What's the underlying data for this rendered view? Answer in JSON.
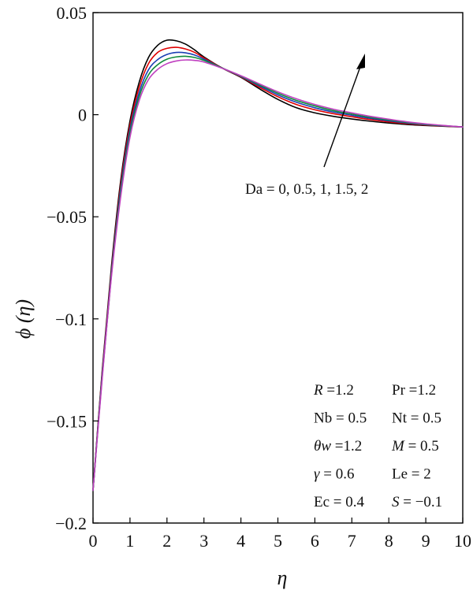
{
  "chart_data": {
    "type": "line",
    "title": "",
    "xlabel": "η",
    "ylabel": "ϕ (η)",
    "xlim": [
      0,
      10
    ],
    "ylim": [
      -0.2,
      0.05
    ],
    "xticks": [
      "0",
      "1",
      "2",
      "3",
      "4",
      "5",
      "6",
      "7",
      "8",
      "9",
      "10"
    ],
    "yticks": [
      "0.05",
      "0",
      "-0.05",
      "-0.1",
      "-0.15",
      "-0.2"
    ],
    "grid": false,
    "series": [
      {
        "color": "#000000",
        "x": [
          0,
          0.25,
          0.5,
          0.75,
          1.0,
          1.25,
          1.5,
          1.75,
          2.0,
          2.25,
          2.5,
          2.75,
          3.0,
          3.5,
          4.0,
          4.5,
          5.0,
          5.5,
          6.0,
          6.5,
          7.0,
          7.5,
          8.0,
          8.5,
          9.0,
          9.5,
          10.0
        ],
        "y": [
          -0.184,
          -0.125,
          -0.074,
          -0.032,
          -0.003,
          0.016,
          0.028,
          0.034,
          0.0365,
          0.0362,
          0.0346,
          0.0317,
          0.0283,
          0.0228,
          0.0183,
          0.0127,
          0.0075,
          0.0034,
          0.0009,
          -0.0008,
          -0.0021,
          -0.0032,
          -0.0041,
          -0.0048,
          -0.0053,
          -0.0057,
          -0.006
        ]
      },
      {
        "color": "#e00000",
        "x": [
          0,
          0.25,
          0.5,
          0.75,
          1.0,
          1.25,
          1.5,
          1.75,
          2.0,
          2.25,
          2.5,
          2.75,
          3.0,
          3.5,
          4.0,
          4.5,
          5.0,
          5.5,
          6.0,
          6.5,
          7.0,
          7.5,
          8.0,
          8.5,
          9.0,
          9.5,
          10.0
        ],
        "y": [
          -0.184,
          -0.126,
          -0.076,
          -0.034,
          -0.005,
          0.0135,
          0.025,
          0.0305,
          0.0325,
          0.033,
          0.0322,
          0.0305,
          0.0278,
          0.0228,
          0.0185,
          0.0135,
          0.0088,
          0.005,
          0.0024,
          0.0005,
          -0.001,
          -0.0024,
          -0.0035,
          -0.0044,
          -0.0051,
          -0.0056,
          -0.006
        ]
      },
      {
        "color": "#1a3fb4",
        "x": [
          0,
          0.25,
          0.5,
          0.75,
          1.0,
          1.25,
          1.5,
          1.75,
          2.0,
          2.25,
          2.5,
          2.75,
          3.0,
          3.5,
          4.0,
          4.5,
          5.0,
          5.5,
          6.0,
          6.5,
          7.0,
          7.5,
          8.0,
          8.5,
          9.0,
          9.5,
          10.0
        ],
        "y": [
          -0.184,
          -0.127,
          -0.077,
          -0.036,
          -0.007,
          0.011,
          0.022,
          0.027,
          0.0295,
          0.0305,
          0.0303,
          0.0292,
          0.0272,
          0.0228,
          0.0187,
          0.0141,
          0.0097,
          0.0061,
          0.0034,
          0.0013,
          -0.0003,
          -0.0018,
          -0.003,
          -0.0041,
          -0.0049,
          -0.0055,
          -0.006
        ]
      },
      {
        "color": "#0f8a3a",
        "x": [
          0,
          0.25,
          0.5,
          0.75,
          1.0,
          1.25,
          1.5,
          1.75,
          2.0,
          2.25,
          2.5,
          2.75,
          3.0,
          3.5,
          4.0,
          4.5,
          5.0,
          5.5,
          6.0,
          6.5,
          7.0,
          7.5,
          8.0,
          8.5,
          9.0,
          9.5,
          10.0
        ],
        "y": [
          -0.184,
          -0.128,
          -0.078,
          -0.038,
          -0.009,
          0.009,
          0.0195,
          0.0245,
          0.0272,
          0.0283,
          0.0286,
          0.028,
          0.0266,
          0.0228,
          0.0189,
          0.0146,
          0.0105,
          0.007,
          0.0043,
          0.002,
          0.0003,
          -0.0013,
          -0.0026,
          -0.0038,
          -0.0047,
          -0.0054,
          -0.006
        ]
      },
      {
        "color": "#c040c0",
        "x": [
          0,
          0.25,
          0.5,
          0.75,
          1.0,
          1.25,
          1.5,
          1.75,
          2.0,
          2.25,
          2.5,
          2.75,
          3.0,
          3.5,
          4.0,
          4.5,
          5.0,
          5.5,
          6.0,
          6.5,
          7.0,
          7.5,
          8.0,
          8.5,
          9.0,
          9.5,
          10.0
        ],
        "y": [
          -0.184,
          -0.129,
          -0.079,
          -0.04,
          -0.011,
          0.007,
          0.0172,
          0.0222,
          0.025,
          0.0263,
          0.0268,
          0.0266,
          0.0258,
          0.0227,
          0.0191,
          0.0151,
          0.0112,
          0.0078,
          0.005,
          0.0027,
          0.0009,
          -0.0008,
          -0.0022,
          -0.0035,
          -0.0045,
          -0.0053,
          -0.006
        ]
      }
    ],
    "annotation": {
      "text": "Da = 0, 0.5, 1, 1.5, 2"
    },
    "parameters": [
      {
        "left_name": "R",
        "left_italic": true,
        "left_rest": " =1.2",
        "right_name": "Pr",
        "right_italic": false,
        "right_rest": " =1.2"
      },
      {
        "left_name": "Nb",
        "left_italic": false,
        "left_rest": " = 0.5",
        "right_name": "Nt",
        "right_italic": false,
        "right_rest": " = 0.5"
      },
      {
        "left_name": "θw",
        "left_italic": true,
        "left_rest": " =1.2",
        "right_name": "M",
        "right_italic": true,
        "right_rest": " = 0.5"
      },
      {
        "left_name": "γ",
        "left_italic": true,
        "left_rest": " = 0.6",
        "right_name": "Le",
        "right_italic": false,
        "right_rest": " = 2"
      },
      {
        "left_name": "Ec",
        "left_italic": false,
        "left_rest": " = 0.4",
        "right_name": "S",
        "right_italic": true,
        "right_rest": " = −0.1"
      }
    ]
  }
}
